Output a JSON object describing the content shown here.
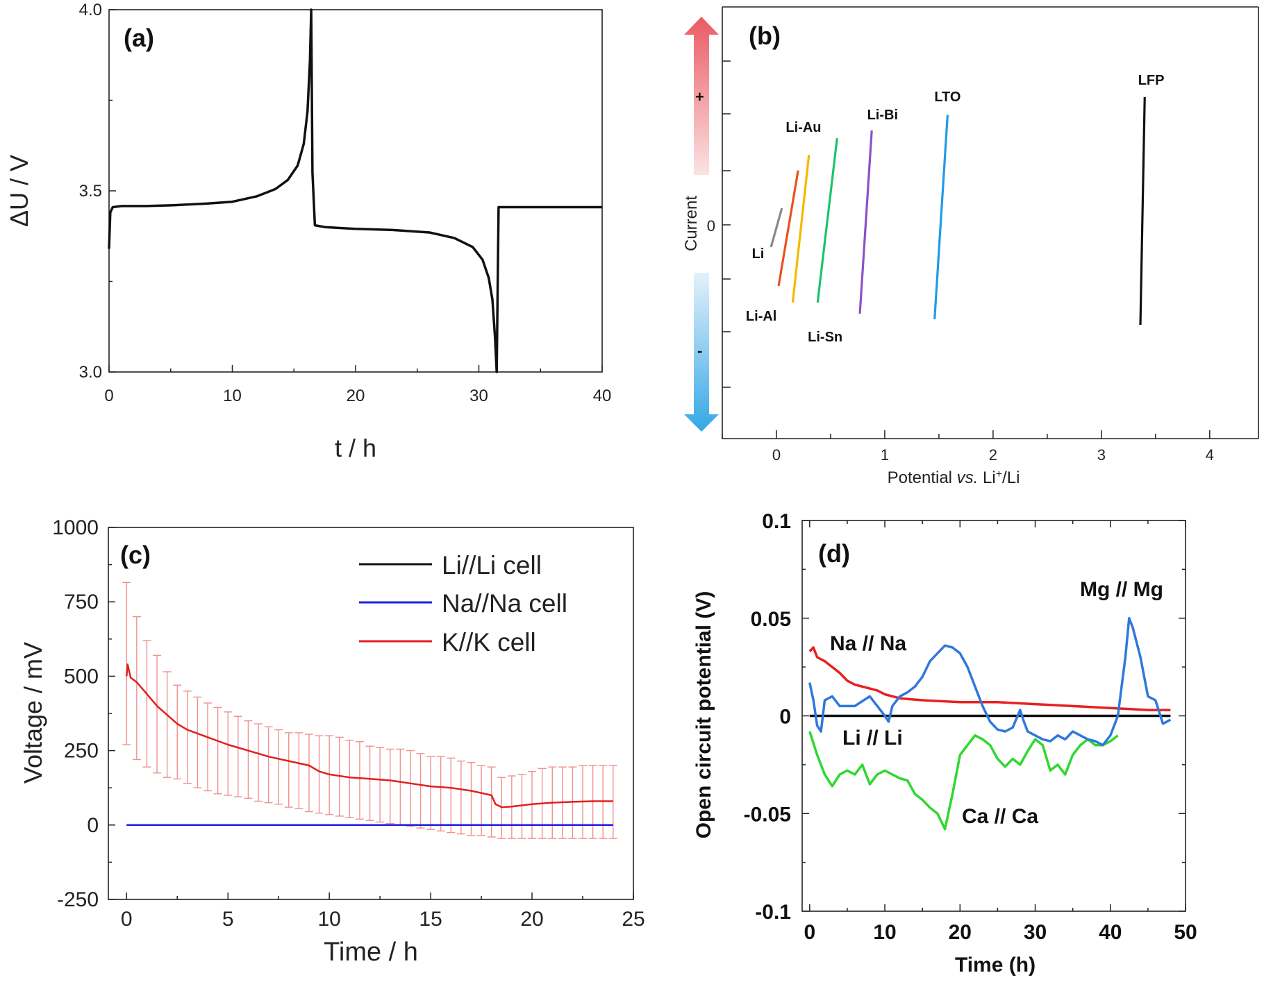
{
  "chart_data": [
    {
      "type": "line",
      "panel_label": "(a)",
      "xlabel": "t / h",
      "ylabel": "ΔU / V",
      "xlim": [
        0,
        40
      ],
      "ylim": [
        3.0,
        4.0
      ],
      "x_ticks": [
        "0",
        "10",
        "20",
        "30",
        "40"
      ],
      "y_ticks": [
        "3.0",
        "3.5",
        "4.0"
      ],
      "grid": false,
      "series": [
        {
          "color": "#111111",
          "x": [
            0,
            0.1,
            0.3,
            1,
            3,
            5,
            8,
            10,
            12,
            13.5,
            14.5,
            15.3,
            15.8,
            16.1,
            16.3,
            16.4,
            16.5,
            16.7,
            17.5,
            20,
            23,
            26,
            28,
            29.5,
            30.3,
            30.8,
            31.1,
            31.3,
            31.45,
            31.6,
            32.5,
            35,
            40
          ],
          "y": [
            3.34,
            3.44,
            3.455,
            3.458,
            3.458,
            3.46,
            3.465,
            3.47,
            3.485,
            3.505,
            3.53,
            3.57,
            3.63,
            3.72,
            3.86,
            4.0,
            3.55,
            3.405,
            3.4,
            3.395,
            3.392,
            3.385,
            3.37,
            3.345,
            3.31,
            3.26,
            3.2,
            3.1,
            3.0,
            3.455,
            3.455,
            3.455,
            3.455
          ]
        }
      ]
    },
    {
      "type": "line",
      "panel_label": "(b)",
      "xlabel": "Potential vs. Li⁺/Li",
      "xlabel_parts": [
        "Potential ",
        "vs.",
        " Li",
        "+",
        "/Li"
      ],
      "ylabel": "Current",
      "xlim": [
        -0.5,
        4.45
      ],
      "x_ticks": [
        "0",
        "1",
        "2",
        "3",
        "4"
      ],
      "y_tick_label": "0",
      "arrow_labels": {
        "plus": "+",
        "minus": "-"
      },
      "series": [
        {
          "name": "Li",
          "color": "#888888",
          "x": [
            -0.05,
            0.05
          ],
          "y": [
            -0.2,
            0.15
          ]
        },
        {
          "name": "Li-Al",
          "color": "#e8521e",
          "x": [
            0.02,
            0.2
          ],
          "y": [
            -0.55,
            0.49
          ]
        },
        {
          "name": "Li-Au",
          "color": "#f5b800",
          "x": [
            0.15,
            0.3
          ],
          "y": [
            -0.7,
            0.63
          ]
        },
        {
          "name": "Li-Sn",
          "color": "#1ec26a",
          "x": [
            0.38,
            0.56
          ],
          "y": [
            -0.7,
            0.78
          ]
        },
        {
          "name": "Li-Bi",
          "color": "#8a52c8",
          "x": [
            0.77,
            0.88
          ],
          "y": [
            -0.8,
            0.85
          ]
        },
        {
          "name": "LTO",
          "color": "#1e9be8",
          "x": [
            1.46,
            1.58
          ],
          "y": [
            -0.85,
            0.99
          ]
        },
        {
          "name": "LFP",
          "color": "#111111",
          "x": [
            3.36,
            3.4
          ],
          "y": [
            -0.9,
            1.15
          ]
        }
      ]
    },
    {
      "type": "line",
      "panel_label": "(c)",
      "xlabel": "Time / h",
      "ylabel": "Voltage / mV",
      "xlim": [
        -0.9,
        25
      ],
      "ylim": [
        -250,
        1000
      ],
      "x_ticks": [
        "0",
        "5",
        "10",
        "15",
        "20",
        "25"
      ],
      "y_ticks": [
        "-250",
        "0",
        "250",
        "500",
        "750",
        "1000"
      ],
      "legend_position": "top-right",
      "series": [
        {
          "name": "Li//Li cell",
          "color": "#111111",
          "x": [
            0,
            24
          ],
          "y": [
            0,
            0
          ]
        },
        {
          "name": "Na//Na cell",
          "color": "#1f1fe0",
          "x": [
            0,
            24
          ],
          "y": [
            0,
            0
          ]
        },
        {
          "name": "K//K cell",
          "color": "#e02020",
          "x": [
            0,
            0.05,
            0.2,
            0.5,
            1,
            1.5,
            2,
            2.5,
            3,
            4,
            5,
            6,
            7,
            8,
            9,
            9.5,
            10,
            11,
            12,
            13,
            14,
            15,
            16,
            17,
            18,
            18.2,
            18.5,
            19,
            20,
            21,
            22,
            23,
            24
          ],
          "y": [
            500,
            540,
            495,
            480,
            440,
            400,
            370,
            340,
            320,
            295,
            270,
            250,
            230,
            215,
            200,
            180,
            170,
            160,
            155,
            150,
            140,
            130,
            125,
            115,
            100,
            70,
            60,
            62,
            70,
            75,
            78,
            80,
            80
          ],
          "error_x": [
            0,
            0.5,
            1,
            1.5,
            2,
            2.5,
            3,
            3.5,
            4,
            4.5,
            5,
            5.5,
            6,
            6.5,
            7,
            7.5,
            8,
            8.5,
            9,
            9.5,
            10,
            10.5,
            11,
            11.5,
            12,
            12.5,
            13,
            13.5,
            14,
            14.5,
            15,
            15.5,
            16,
            16.5,
            17,
            17.5,
            18,
            18.5,
            19,
            19.5,
            20,
            20.5,
            21,
            21.5,
            22,
            22.5,
            23,
            23.5,
            24
          ],
          "error_upper": [
            815,
            700,
            620,
            570,
            515,
            470,
            450,
            430,
            410,
            395,
            380,
            365,
            350,
            340,
            330,
            320,
            310,
            310,
            305,
            300,
            300,
            295,
            285,
            280,
            265,
            260,
            255,
            255,
            250,
            240,
            230,
            230,
            225,
            215,
            210,
            200,
            195,
            160,
            165,
            170,
            180,
            190,
            195,
            195,
            195,
            200,
            200,
            200,
            200
          ],
          "error_lower": [
            270,
            220,
            195,
            175,
            160,
            155,
            140,
            125,
            115,
            105,
            100,
            95,
            90,
            80,
            75,
            70,
            60,
            55,
            45,
            40,
            35,
            30,
            25,
            20,
            15,
            10,
            5,
            0,
            -5,
            -10,
            -15,
            -20,
            -25,
            -30,
            -35,
            -35,
            -40,
            -45,
            -45,
            -45,
            -45,
            -45,
            -45,
            -45,
            -45,
            -45,
            -45,
            -45,
            -45
          ]
        }
      ]
    },
    {
      "type": "line",
      "panel_label": "(d)",
      "xlabel": "Time (h)",
      "ylabel": "Open circuit potential (V)",
      "xlim": [
        -1,
        50
      ],
      "ylim": [
        -0.1,
        0.1
      ],
      "x_ticks": [
        "0",
        "10",
        "20",
        "30",
        "40",
        "50"
      ],
      "y_ticks": [
        "-0.1",
        "-0.05",
        "0",
        "0.05",
        "0.1"
      ],
      "series": [
        {
          "name": "Li // Li",
          "color": "#111111",
          "x": [
            0,
            48
          ],
          "y": [
            0,
            0
          ]
        },
        {
          "name": "Na // Na",
          "color": "#e82020",
          "x": [
            0,
            0.5,
            1,
            2,
            3,
            4,
            5,
            6,
            7,
            8,
            9,
            10,
            12,
            15,
            20,
            25,
            30,
            35,
            40,
            45,
            48
          ],
          "y": [
            0.033,
            0.035,
            0.03,
            0.028,
            0.025,
            0.022,
            0.018,
            0.016,
            0.015,
            0.014,
            0.013,
            0.011,
            0.009,
            0.008,
            0.007,
            0.007,
            0.006,
            0.005,
            0.004,
            0.003,
            0.003
          ]
        },
        {
          "name": "Mg // Mg",
          "color": "#2f78dc",
          "x": [
            0,
            0.5,
            1,
            1.5,
            2,
            3,
            4,
            6,
            8,
            9,
            10,
            10.5,
            11,
            12,
            13,
            14,
            15,
            16,
            17,
            18,
            19,
            20,
            21,
            22,
            23,
            24,
            25,
            26,
            27,
            28,
            28.5,
            29,
            30,
            31,
            32,
            33,
            34,
            35,
            36,
            37,
            38,
            39,
            40,
            41,
            42,
            42.5,
            43,
            44,
            45,
            46,
            47,
            48
          ],
          "y": [
            0.017,
            0.008,
            -0.005,
            -0.008,
            0.008,
            0.01,
            0.005,
            0.005,
            0.01,
            0.005,
            0.0,
            -0.003,
            0.005,
            0.01,
            0.012,
            0.015,
            0.02,
            0.028,
            0.032,
            0.036,
            0.035,
            0.032,
            0.025,
            0.015,
            0.005,
            -0.003,
            -0.007,
            -0.008,
            -0.006,
            0.003,
            -0.003,
            -0.008,
            -0.01,
            -0.012,
            -0.013,
            -0.01,
            -0.012,
            -0.008,
            -0.01,
            -0.012,
            -0.013,
            -0.015,
            -0.01,
            0.0,
            0.03,
            0.05,
            0.045,
            0.03,
            0.01,
            0.008,
            -0.004,
            -0.002
          ]
        },
        {
          "name": "Ca // Ca",
          "color": "#2fd82f",
          "x": [
            0,
            1,
            2,
            3,
            4,
            5,
            6,
            7,
            8,
            9,
            10,
            11,
            12,
            13,
            14,
            15,
            16,
            17,
            18,
            19,
            20,
            21,
            22,
            23,
            24,
            25,
            26,
            27,
            28,
            29,
            30,
            31,
            32,
            33,
            34,
            35,
            36,
            37,
            38,
            39,
            40,
            41
          ],
          "y": [
            -0.008,
            -0.02,
            -0.03,
            -0.036,
            -0.03,
            -0.028,
            -0.03,
            -0.025,
            -0.035,
            -0.03,
            -0.028,
            -0.03,
            -0.032,
            -0.033,
            -0.04,
            -0.043,
            -0.047,
            -0.05,
            -0.058,
            -0.04,
            -0.02,
            -0.015,
            -0.01,
            -0.012,
            -0.015,
            -0.022,
            -0.026,
            -0.022,
            -0.025,
            -0.018,
            -0.012,
            -0.015,
            -0.028,
            -0.025,
            -0.03,
            -0.02,
            -0.015,
            -0.012,
            -0.015,
            -0.015,
            -0.013,
            -0.01
          ]
        }
      ]
    }
  ]
}
